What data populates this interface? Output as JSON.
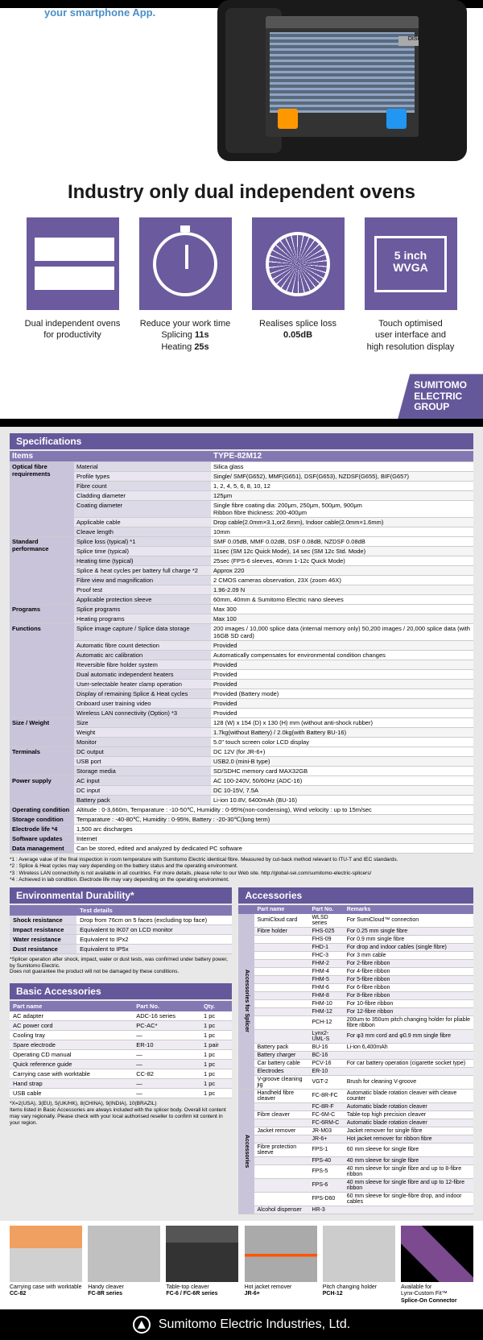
{
  "hero": {
    "app_text": "your smartphone App.",
    "screen_top": "DISP",
    "heading": "Industry only dual independent ovens",
    "features": [
      {
        "text": "Dual independent ovens\nfor productivity"
      },
      {
        "text_html": "Reduce your work time<br>Splicing <b>11s</b><br>Heating <b>25s</b>"
      },
      {
        "text_html": "Realises splice loss<br><b>0.05dB</b>"
      },
      {
        "text_html": "Touch optimised<br>user interface and<br>high resolution display",
        "icon_text": "5 inch\nWVGA"
      }
    ],
    "tag": "SUMITOMO\nELECTRIC\nGROUP"
  },
  "specs": {
    "title": "Specifications",
    "header_items": "Items",
    "header_type": "TYPE-82M12",
    "groups": [
      {
        "cat": "Optical fibre requirements",
        "rows": [
          [
            "Material",
            "Silica glass"
          ],
          [
            "Profile types",
            "Single/ SMF(G652), MMF(G651), DSF(G653), NZDSF(G655), BIF(G657)"
          ],
          [
            "Fibre count",
            "1, 2, 4, 5, 6, 8, 10, 12"
          ],
          [
            "Cladding diameter",
            "125μm"
          ],
          [
            "Coating diameter",
            "Single fibre coating dia: 200μm, 250μm, 500μm, 900μm\nRibbon fibre thickness: 200-400μm"
          ],
          [
            "Applicable cable",
            "Drop cable(2.0mm×3.1,or2.6mm), Indoor cable(2.0mm×1.6mm)"
          ],
          [
            "Cleave length",
            "10mm"
          ]
        ]
      },
      {
        "cat": "Standard performance",
        "rows": [
          [
            "Splice loss (typical) *1",
            "SMF 0.05dB, MMF 0.02dB, DSF 0.08dB, NZDSF 0.08dB"
          ],
          [
            "Splice time (typical)",
            "11sec (SM 12c Quick Mode), 14 sec (SM 12c Std. Mode)"
          ],
          [
            "Heating time (typical)",
            "25sec (FPS-6 sleeves, 40mm 1-12c Quick Mode)"
          ],
          [
            "Splice & heat cycles per battery full charge *2",
            "Approx 220"
          ],
          [
            "Fibre view and magnification",
            "2 CMOS cameras observation, 23X (zoom 46X)"
          ],
          [
            "Proof test",
            "1.96-2.09 N"
          ],
          [
            "Applicable protection sleeve",
            "60mm, 40mm & Sumitomo Electric nano sleeves"
          ]
        ]
      },
      {
        "cat": "Programs",
        "rows": [
          [
            "Splice programs",
            "Max 300"
          ],
          [
            "Heating programs",
            "Max 100"
          ]
        ]
      },
      {
        "cat": "Functions",
        "rows": [
          [
            "Splice image capture / Splice data storage",
            "200 images / 10,000 splice data (internal memory only)   50,200 images / 20,000 splice data (with 16GB SD card)"
          ],
          [
            "Automatic fibre count detection",
            "Provided"
          ],
          [
            "Automatic arc calibration",
            "Automatically compensates for environmental condition changes"
          ],
          [
            "Reversible fibre holder system",
            "Provided"
          ],
          [
            "Dual automatic independent heaters",
            "Provided"
          ],
          [
            "User-selectable heater clamp operation",
            "Provided"
          ],
          [
            "Display of remaining Splice & Heat cycles",
            "Provided (Battery mode)"
          ],
          [
            "Onboard user training video",
            "Provided"
          ],
          [
            "Wireless LAN connectivity (Option) *3",
            "Provided"
          ]
        ]
      },
      {
        "cat": "Size / Weight",
        "rows": [
          [
            "Size",
            "128 (W) x 154 (D) x 130 (H) mm (without anti-shock rubber)"
          ],
          [
            "Weight",
            "1.7kg(without Battery) / 2.0kg(with Battery BU-16)"
          ],
          [
            "Monitor",
            "5.0\" touch screen color LCD display"
          ]
        ]
      },
      {
        "cat": "Terminals",
        "rows": [
          [
            "DC output",
            "DC 12V (for JR-6+)"
          ],
          [
            "USB port",
            "USB2.0 (mini-B type)"
          ],
          [
            "Storage media",
            "SD/SDHC memory card MAX32GB"
          ]
        ]
      },
      {
        "cat": "Power supply",
        "rows": [
          [
            "AC input",
            "AC 100-240V, 50/60Hz (ADC-16)"
          ],
          [
            "DC input",
            "DC 10-15V, 7.5A"
          ],
          [
            "Battery pack",
            "Li-ion 10.8V, 6400mAh (BU-16)"
          ]
        ]
      },
      {
        "cat": "",
        "rows": [
          [
            "Operating condition",
            "Altitude : 0-3,660m, Temparature : -10-50℃, Humidity : 0-95%(non-condensing), Wind velocity : up to 15m/sec"
          ],
          [
            "Storage condition",
            "Temparature : -40-80℃, Humidity : 0-95%, Battery : -20-30℃(long term)"
          ],
          [
            "Electrode life *4",
            "1,500 arc discharges"
          ],
          [
            "Software updates",
            "Internet"
          ],
          [
            "Data management",
            "Can be stored, edited and analyzed by dedicated PC software"
          ]
        ]
      }
    ],
    "footnotes": [
      "*1 : Average value of the final inspection in room temperature with Sumitomo Electric identical fibre. Measured by cut-back method relevant to ITU-T and IEC standards.",
      "*2 : Splice & Heat cycles may vary depending on the battery status and the operating environment.",
      "*3 : Wireless LAN connectivity is not available in all countries. For more details, please refer to our Web site. http://global-sei.com/sumitomo-electric-splicers/",
      "*4 : Achieved in lab condition. Electrode life may vary depending on the operating environment."
    ]
  },
  "env": {
    "title": "Environmental Durability*",
    "header": "Test details",
    "rows": [
      [
        "Shock resistance",
        "Drop from 76cm on 5 faces (excluding top face)"
      ],
      [
        "Impact resistance",
        "Equivalent to IK07 on LCD monitor"
      ],
      [
        "Water resistance",
        "Equivalent to IPx2"
      ],
      [
        "Dust resistance",
        "Equivalent to IP5x"
      ]
    ],
    "note": "*Splicer operation after shock, impact, water or dust tests, was confirmed under battery power, by Sumitomo Electric.\nDoes not guarantee the product will not be damaged by these conditions."
  },
  "basic": {
    "title": "Basic Accessories",
    "headers": [
      "Part name",
      "Part No.",
      "Qty."
    ],
    "rows": [
      [
        "AC adapter",
        "ADC-16 series",
        "1 pc"
      ],
      [
        "AC power cord",
        "PC-AC<X>*",
        "1 pc"
      ],
      [
        "Cooling tray",
        "—",
        "1 pc"
      ],
      [
        "Spare electrode",
        "ER-10",
        "1 pair"
      ],
      [
        "Operating CD manual",
        "—",
        "1 pc"
      ],
      [
        "Quick reference guide",
        "—",
        "1 pc"
      ],
      [
        "Carrying case with worktable",
        "CC-82",
        "1 pc"
      ],
      [
        "Hand strap",
        "—",
        "1 pc"
      ],
      [
        "USB cable",
        "—",
        "1 pc"
      ]
    ],
    "note": "*X=2(USA), 3(EU), 5(UK/HK), 8(CHINA), 9(INDIA), 10(BRAZIL)\nItems listed in Basic Accessories are always included with the splicer body. Overall kit content may vary regionally. Please check with your local authorised reseller to confirm kit content in your region."
  },
  "accessories": {
    "title": "Accessories",
    "headers": [
      "Part name",
      "Part No.",
      "Remarks"
    ],
    "groups": [
      {
        "cat": "Accessories for Splicer",
        "rows": [
          [
            "SumiCloud card",
            "WLSD series",
            "For SumiCloud™ connection"
          ],
          [
            "Fibre holder",
            "FHS-025",
            "For 0.25 mm single fibre"
          ],
          [
            "",
            "FHS-09",
            "For 0.9 mm single fibre"
          ],
          [
            "",
            "FHD-1",
            "For drop and indoor cables (single fibre)"
          ],
          [
            "",
            "FHC-3",
            "For 3 mm cable"
          ],
          [
            "",
            "FHM-2",
            "For 2-fibre ribbon"
          ],
          [
            "",
            "FHM-4",
            "For 4-fibre ribbon"
          ],
          [
            "",
            "FHM-5",
            "For 5-fibre ribbon"
          ],
          [
            "",
            "FHM-6",
            "For 6-fibre ribbon"
          ],
          [
            "",
            "FHM-8",
            "For 8-fibre ribbon"
          ],
          [
            "",
            "FHM-10",
            "For 10-fibre ribbon"
          ],
          [
            "",
            "FHM-12",
            "For 12-fibre ribbon"
          ],
          [
            "",
            "PCH-12",
            "200um to 350um pitch changing holder for pliable fibre ribbon"
          ],
          [
            "",
            "Lynx2-UML-S",
            "For φ3 mm cord and φ0.9 mm single fibre"
          ],
          [
            "Battery pack",
            "BU-16",
            "Li-ion 6,400mAh"
          ],
          [
            "Battery charger",
            "BC-16",
            ""
          ],
          [
            "Car battery cable",
            "PCV-16",
            "For car battery operation (cigarette socket type)"
          ],
          [
            "Electrodes",
            "ER-10",
            ""
          ],
          [
            "V-groove cleaning jig",
            "VGT-2",
            "Brush for cleaning V-groove"
          ]
        ]
      },
      {
        "cat": "Accessories",
        "rows": [
          [
            "Handheld fibre cleaver",
            "FC-8R-FC",
            "Automatic blade rotation cleaver with cleave counter"
          ],
          [
            "",
            "FC-8R-F",
            "Automatic blade rotation cleaver"
          ],
          [
            "Fibre cleaver",
            "FC-6M-C",
            "Table-top high precision cleaver"
          ],
          [
            "",
            "FC-6RM-C",
            "Automatic blade rotation cleaver"
          ],
          [
            "Jacket remover",
            "JR-M03",
            "Jacket remover for single fibre"
          ],
          [
            "",
            "JR-6+",
            "Hot jacket remover for ribbon fibre"
          ],
          [
            "Fibre protection sleeve",
            "FPS-1",
            "60 mm sleeve for single fibre"
          ],
          [
            "",
            "FPS-40",
            "40 mm sleeve for single fibre"
          ],
          [
            "",
            "FPS-5",
            "40 mm sleeve for single fibre and up to 8-fibre ribbon"
          ],
          [
            "",
            "FPS-6",
            "40 mm sleeve for single fibre and up to 12-fibre ribbon"
          ],
          [
            "",
            "FPS-D60",
            "60 mm sleeve for single-fibre drop, and indoor cables"
          ],
          [
            "Alcohol dispenser",
            "HR-3",
            ""
          ]
        ]
      }
    ]
  },
  "products": [
    {
      "label": "Carrying case with worktable",
      "code": "CC-82",
      "img": "pi1"
    },
    {
      "label": "Handy cleaver",
      "code": "FC-8R series",
      "img": "pi2"
    },
    {
      "label": "Table-top cleaver",
      "code": "FC-6 / FC-6R series",
      "img": "pi3"
    },
    {
      "label": "Hot jacket remover",
      "code": "JR-6+",
      "img": "pi4"
    },
    {
      "label": "Pitch changing holder",
      "code": "PCH-12",
      "img": "pi5"
    },
    {
      "label": "Available for\nLynx-Custom Fit™",
      "code": "Splice-On Connector",
      "img": "pi6"
    }
  ],
  "footer": "Sumitomo Electric Industries, Ltd."
}
